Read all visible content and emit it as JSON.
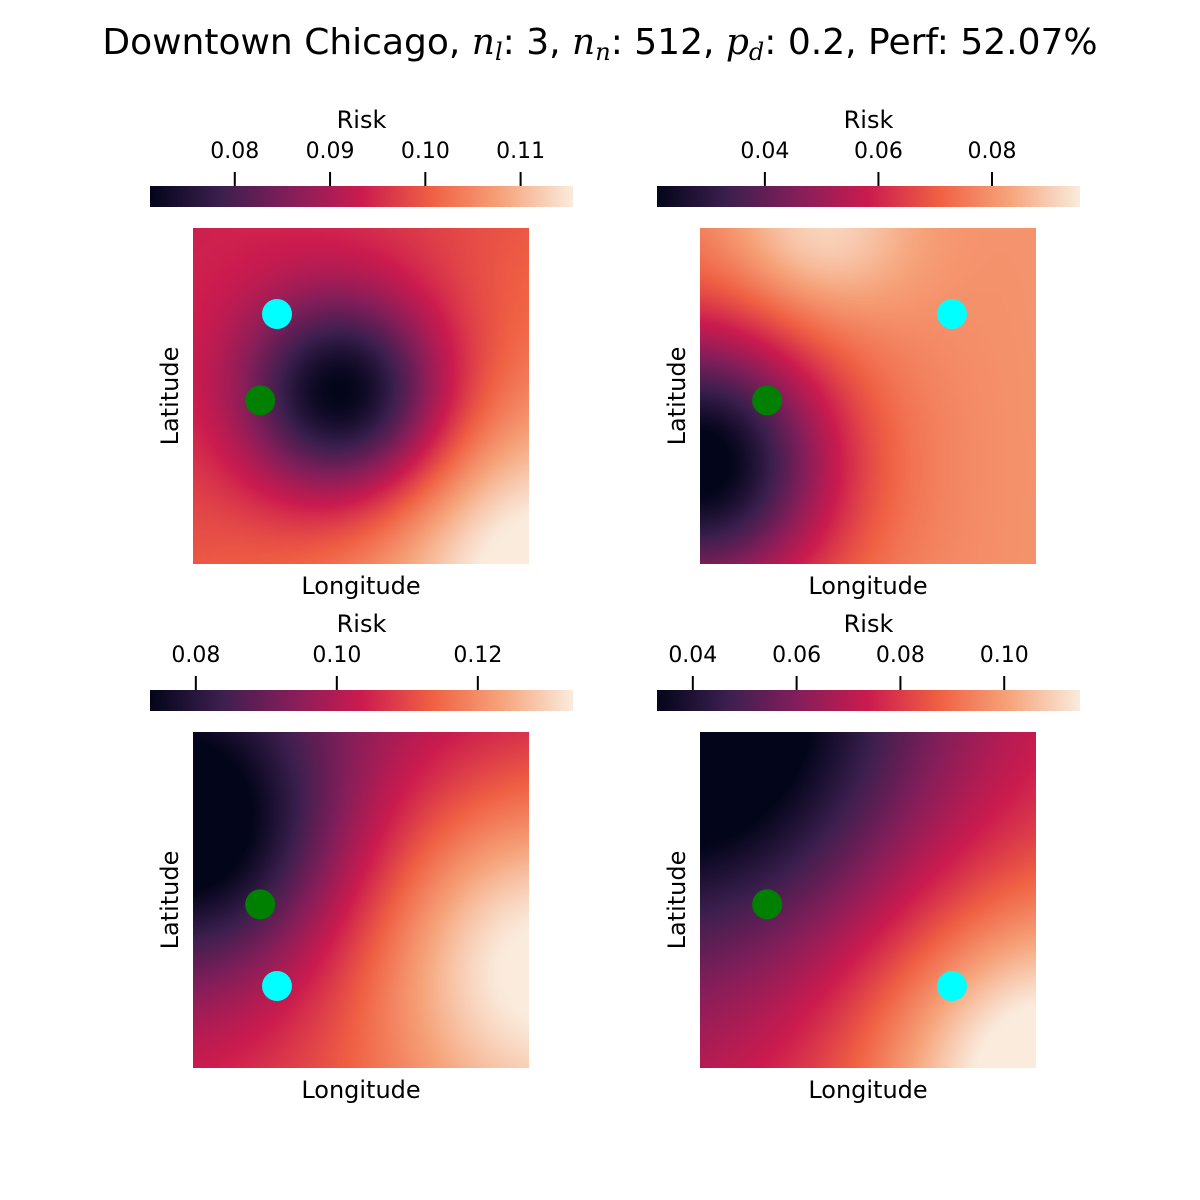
{
  "title": {
    "city": "Downtown Chicago",
    "n_l_label": "n",
    "n_l_sub": "l",
    "n_l_value": "3",
    "n_n_label": "n",
    "n_n_sub": "n",
    "n_n_value": "512",
    "p_d_label": "p",
    "p_d_sub": "d",
    "p_d_value": "0.2",
    "perf_label": "Perf",
    "perf_value": "52.07%"
  },
  "colors": {
    "colormap": [
      "#03051a",
      "#3b1f4e",
      "#841e5a",
      "#cb1b4f",
      "#f06043",
      "#f6a47b",
      "#faebdd"
    ],
    "marker_green": "#008000",
    "marker_cyan": "#00ffff"
  },
  "chart_data": [
    {
      "type": "heatmap",
      "panel": "top-left",
      "colorbar_label": "Risk",
      "colorbar_ticks": [
        "0.08",
        "0.09",
        "0.10",
        "0.11"
      ],
      "colorbar_tick_values": [
        0.08,
        0.09,
        0.1,
        0.11
      ],
      "vmin": 0.0711,
      "vmax": 0.1155,
      "xlabel": "Longitude",
      "ylabel": "Latitude",
      "grid": false,
      "green_point": [
        0.2,
        0.487
      ],
      "cyan_point": [
        0.25,
        0.744
      ],
      "field": {
        "base": 0.1,
        "gaussians": [
          {
            "cx": 0.45,
            "cy": 0.5,
            "amp": -0.029,
            "sigma": 0.22
          },
          {
            "cx": 1.0,
            "cy": 0.0,
            "amp": 0.012,
            "sigma": 0.3
          }
        ],
        "gradient": [
          0.006,
          -0.006
        ]
      }
    },
    {
      "type": "heatmap",
      "panel": "top-right",
      "colorbar_label": "Risk",
      "colorbar_ticks": [
        "0.04",
        "0.06",
        "0.08"
      ],
      "colorbar_tick_values": [
        0.04,
        0.06,
        0.08
      ],
      "vmin": 0.021,
      "vmax": 0.0955,
      "xlabel": "Longitude",
      "ylabel": "Latitude",
      "grid": false,
      "green_point": [
        0.2,
        0.487
      ],
      "cyan_point": [
        0.75,
        0.744
      ],
      "field": {
        "base": 0.078,
        "gaussians": [
          {
            "cx": 0.0,
            "cy": 0.3,
            "amp": -0.058,
            "sigma": 0.28
          },
          {
            "cx": 0.35,
            "cy": 1.0,
            "amp": 0.015,
            "sigma": 0.2
          }
        ],
        "gradient": [
          0.004,
          0.0
        ]
      }
    },
    {
      "type": "heatmap",
      "panel": "bottom-left",
      "colorbar_label": "Risk",
      "colorbar_ticks": [
        "0.08",
        "0.10",
        "0.12"
      ],
      "colorbar_tick_values": [
        0.08,
        0.1,
        0.12
      ],
      "vmin": 0.0735,
      "vmax": 0.1335,
      "xlabel": "Longitude",
      "ylabel": "Latitude",
      "grid": false,
      "green_point": [
        0.2,
        0.487
      ],
      "cyan_point": [
        0.25,
        0.244
      ],
      "field": {
        "base": 0.104,
        "gaussians": [
          {
            "cx": 0.0,
            "cy": 0.7,
            "amp": -0.03,
            "sigma": 0.3
          },
          {
            "cx": 1.0,
            "cy": 0.35,
            "amp": 0.024,
            "sigma": 0.35
          }
        ],
        "gradient": [
          0.01,
          -0.012
        ]
      }
    },
    {
      "type": "heatmap",
      "panel": "bottom-right",
      "colorbar_label": "Risk",
      "colorbar_ticks": [
        "0.04",
        "0.06",
        "0.08",
        "0.10"
      ],
      "colorbar_tick_values": [
        0.04,
        0.06,
        0.08,
        0.1
      ],
      "vmin": 0.0331,
      "vmax": 0.1146,
      "xlabel": "Longitude",
      "ylabel": "Latitude",
      "grid": false,
      "green_point": [
        0.2,
        0.487
      ],
      "cyan_point": [
        0.75,
        0.244
      ],
      "field": {
        "base": 0.074,
        "gaussians": [
          {
            "cx": 0.0,
            "cy": 1.0,
            "amp": -0.042,
            "sigma": 0.45
          },
          {
            "cx": 1.0,
            "cy": 0.0,
            "amp": 0.035,
            "sigma": 0.35
          }
        ],
        "gradient": [
          0.015,
          -0.012
        ]
      }
    }
  ]
}
